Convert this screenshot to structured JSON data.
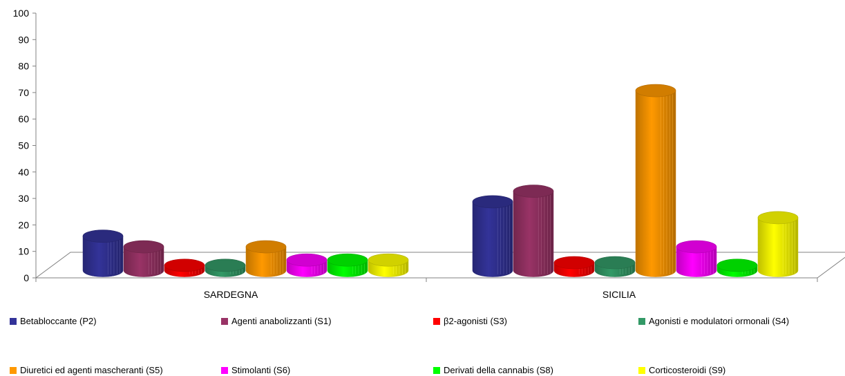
{
  "chart_data": {
    "type": "bar",
    "title": "",
    "xlabel": "",
    "ylabel": "",
    "ylim": [
      0,
      100
    ],
    "yticks": [
      0,
      10,
      20,
      30,
      40,
      50,
      60,
      70,
      80,
      90,
      100
    ],
    "categories": [
      "SARDEGNA",
      "SICILIA"
    ],
    "series": [
      {
        "name": "Betabloccante (P2)",
        "color": "#333399",
        "values": [
          13,
          26
        ]
      },
      {
        "name": "Agenti anabolizzanti (S1)",
        "color": "#993366",
        "values": [
          9,
          30
        ]
      },
      {
        "name": "β2-agonisti (S3)",
        "color": "#ff0000",
        "values": [
          2,
          3
        ]
      },
      {
        "name": "Agonisti e modulatori ormonali (S4)",
        "color": "#339966",
        "values": [
          2,
          3
        ]
      },
      {
        "name": "Diuretici ed agenti mascheranti (S5)",
        "color": "#ff9900",
        "values": [
          9,
          68
        ]
      },
      {
        "name": "Stimolanti (S6)",
        "color": "#ff00ff",
        "values": [
          4,
          9
        ]
      },
      {
        "name": "Derivati della cannabis (S8)",
        "color": "#00ff00",
        "values": [
          4,
          2
        ]
      },
      {
        "name": "Corticosteroidi (S9)",
        "color": "#ffff00",
        "values": [
          4,
          20
        ]
      }
    ],
    "grid": false,
    "legend_position": "bottom"
  }
}
